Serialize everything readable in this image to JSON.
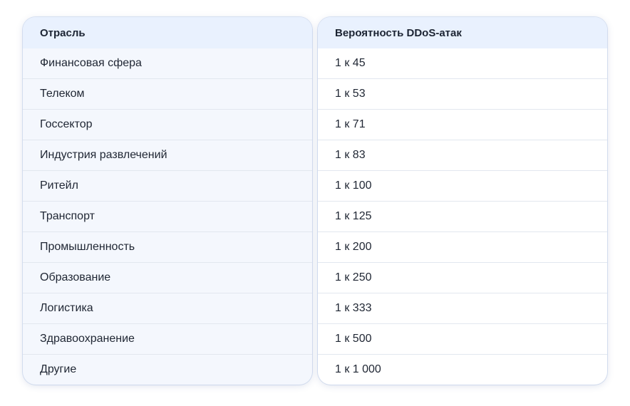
{
  "table": {
    "headers": [
      "Отрасль",
      "Вероятность DDoS-атак"
    ],
    "rows": [
      [
        "Финансовая сфера",
        "1 к 45"
      ],
      [
        "Телеком",
        "1 к 53"
      ],
      [
        "Госсектор",
        "1 к 71"
      ],
      [
        "Индустрия развлечений",
        "1 к 83"
      ],
      [
        "Ритейл",
        "1 к 100"
      ],
      [
        "Транспорт",
        "1 к 125"
      ],
      [
        "Промышленность",
        "1 к 200"
      ],
      [
        "Образование",
        "1 к 250"
      ],
      [
        "Логистика",
        "1 к 333"
      ],
      [
        "Здравоохранение",
        "1 к 500"
      ],
      [
        "Другие",
        "1 к 1 000"
      ]
    ]
  }
}
